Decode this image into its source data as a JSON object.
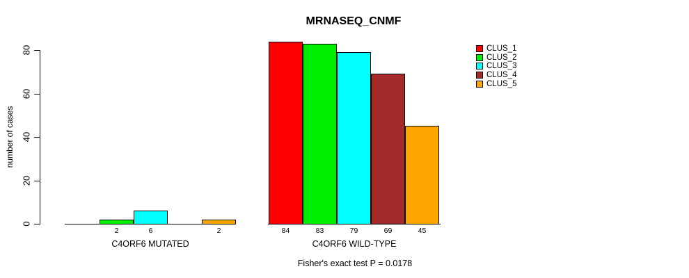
{
  "chart_data": {
    "type": "bar",
    "title": "MRNASEQ_CNMF",
    "xlabel": "",
    "ylabel": "number of cases",
    "ylim": [
      0,
      84
    ],
    "yticks": [
      0,
      20,
      40,
      60,
      80
    ],
    "grid": false,
    "background_color": "#ffffff",
    "axis_color": "#000000",
    "bar_border_color": "#000000",
    "legend": {
      "position": "right",
      "entries": [
        {
          "label": "CLUS_1",
          "color": "#ff0000"
        },
        {
          "label": "CLUS_2",
          "color": "#00ee00"
        },
        {
          "label": "CLUS_3",
          "color": "#00ffff"
        },
        {
          "label": "CLUS_4",
          "color": "#a52a2a"
        },
        {
          "label": "CLUS_5",
          "color": "#ffa500"
        }
      ]
    },
    "categories": [
      "CLUS_1",
      "CLUS_2",
      "CLUS_3",
      "CLUS_4",
      "CLUS_5"
    ],
    "groups": [
      {
        "label": "C4ORF6 MUTATED",
        "values": [
          0,
          2,
          6,
          0,
          2
        ]
      },
      {
        "label": "C4ORF6 WILD-TYPE",
        "values": [
          84,
          83,
          79,
          69,
          45
        ]
      }
    ],
    "bar_label_rule": "value shown under each bar when value > 0",
    "annotation": "Fisher's exact test P = 0.0178"
  }
}
